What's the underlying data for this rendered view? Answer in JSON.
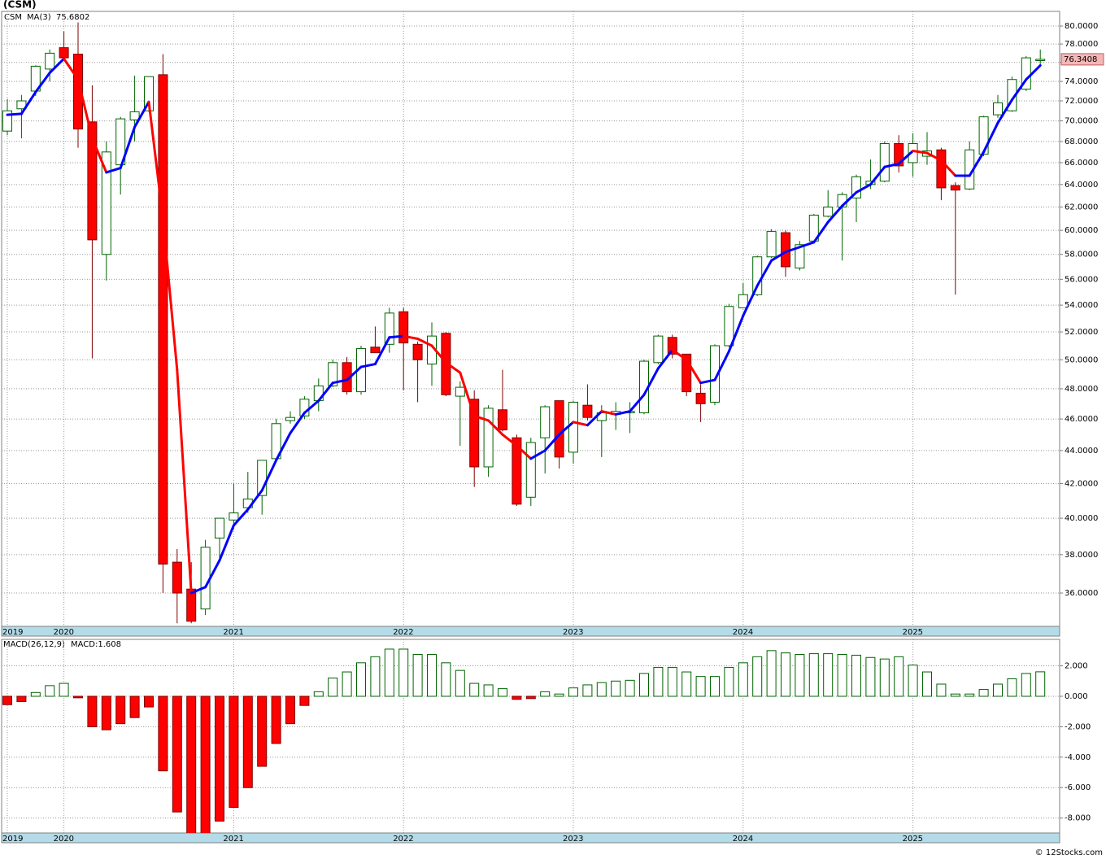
{
  "chart_data": [
    {
      "type": "candlestick",
      "title": "(CSM)",
      "symbol": "CSM",
      "symbol_color": "#006400",
      "categories": [
        "2019",
        null,
        null,
        null,
        "2020",
        null,
        null,
        null,
        null,
        null,
        null,
        null,
        null,
        null,
        null,
        null,
        "2021",
        null,
        null,
        null,
        null,
        null,
        null,
        null,
        null,
        null,
        null,
        null,
        "2022",
        null,
        null,
        null,
        null,
        null,
        null,
        null,
        null,
        null,
        null,
        null,
        "2023",
        null,
        null,
        null,
        null,
        null,
        null,
        null,
        null,
        null,
        null,
        null,
        "2024",
        null,
        null,
        null,
        null,
        null,
        null,
        null,
        null,
        null,
        null,
        null,
        "2025",
        null,
        null,
        null,
        null,
        null,
        null,
        null,
        null,
        null
      ],
      "open": [
        69.0,
        71.2,
        73.0,
        75.3,
        77.6,
        76.9,
        69.9,
        58.0,
        65.8,
        70.1,
        71.0,
        74.7,
        37.6,
        36.2,
        35.2,
        38.9,
        39.9,
        40.6,
        41.3,
        43.5,
        45.9,
        46.2,
        47.2,
        48.2,
        49.8,
        47.8,
        50.9,
        51.1,
        53.5,
        51.1,
        49.7,
        51.9,
        47.5,
        47.3,
        43.0,
        46.6,
        44.8,
        41.2,
        44.8,
        47.2,
        43.9,
        46.9,
        45.9,
        46.3,
        46.4,
        46.4,
        49.8,
        51.6,
        50.4,
        47.7,
        47.1,
        51.0,
        53.8,
        54.8,
        57.8,
        59.8,
        56.9,
        59.1,
        61.2,
        62.0,
        62.8,
        64.0,
        64.3,
        67.8,
        66.0,
        66.6,
        67.2,
        63.9,
        63.6,
        66.8,
        70.6,
        71.0,
        73.2,
        76.2
      ],
      "high": [
        72.2,
        72.6,
        75.7,
        77.4,
        79.4,
        80.4,
        73.6,
        68.0,
        70.4,
        74.6,
        74.5,
        76.9,
        38.3,
        37.6,
        38.8,
        40.0,
        42.0,
        42.7,
        43.4,
        46.0,
        46.5,
        47.5,
        48.7,
        50.0,
        50.2,
        51.0,
        52.4,
        53.8,
        53.8,
        51.3,
        52.7,
        52.0,
        48.5,
        47.9,
        46.9,
        49.3,
        45.0,
        44.8,
        46.9,
        47.2,
        47.2,
        48.3,
        46.9,
        47.1,
        47.1,
        50.0,
        51.8,
        51.8,
        50.4,
        48.3,
        51.1,
        54.1,
        55.7,
        57.9,
        60.1,
        60.0,
        59.1,
        61.4,
        63.5,
        63.3,
        64.9,
        66.3,
        68.0,
        68.6,
        68.8,
        68.9,
        67.4,
        64.2,
        68.0,
        70.5,
        72.6,
        74.5,
        76.7,
        77.4
      ],
      "low": [
        68.6,
        68.3,
        72.5,
        74.0,
        76.2,
        67.4,
        50.1,
        55.9,
        63.1,
        68.0,
        70.9,
        36.0,
        34.5,
        34.5,
        34.9,
        37.6,
        39.4,
        40.3,
        40.2,
        43.4,
        45.7,
        46.0,
        46.5,
        48.1,
        47.6,
        47.6,
        50.5,
        50.5,
        47.9,
        47.1,
        48.2,
        47.5,
        44.3,
        41.8,
        42.4,
        45.2,
        40.7,
        40.7,
        42.6,
        42.9,
        43.2,
        45.9,
        43.6,
        45.3,
        45.1,
        46.3,
        49.7,
        50.1,
        47.5,
        45.8,
        46.9,
        50.9,
        53.8,
        54.7,
        57.7,
        56.2,
        56.7,
        58.9,
        61.1,
        57.5,
        60.7,
        63.6,
        64.2,
        65.1,
        64.7,
        65.8,
        62.6,
        54.8,
        63.5,
        66.6,
        70.3,
        70.9,
        73.0,
        75.8
      ],
      "close": [
        71.0,
        72.0,
        75.6,
        77.0,
        76.5,
        69.2,
        59.2,
        67.0,
        70.2,
        70.9,
        74.5,
        37.5,
        36.0,
        34.6,
        38.4,
        40.0,
        40.3,
        41.1,
        43.4,
        45.7,
        46.1,
        47.3,
        48.2,
        49.8,
        47.8,
        50.8,
        50.5,
        53.4,
        51.2,
        50.0,
        51.7,
        47.6,
        48.1,
        43.0,
        46.7,
        45.3,
        40.8,
        44.5,
        46.8,
        43.6,
        47.1,
        46.1,
        46.4,
        46.5,
        46.5,
        49.9,
        51.7,
        50.4,
        47.8,
        47.0,
        51.0,
        53.9,
        54.8,
        57.8,
        59.9,
        57.0,
        58.8,
        61.3,
        62.0,
        63.1,
        64.7,
        64.3,
        67.8,
        65.7,
        67.8,
        67.1,
        63.7,
        63.5,
        67.2,
        70.4,
        71.8,
        74.2,
        76.5,
        76.3408
      ],
      "up_color": "#006400",
      "down_color": "#ff0000",
      "last_color": "#f4b6b6",
      "log_scale": true,
      "grid": true,
      "ylim": [
        34.35,
        81.67
      ],
      "yticks": [
        {
          "value": 36,
          "label": "36.0000"
        },
        {
          "value": 38,
          "label": "38.0000"
        },
        {
          "value": 40,
          "label": "40.0000"
        },
        {
          "value": 42,
          "label": "42.0000"
        },
        {
          "value": 44,
          "label": "44.0000"
        },
        {
          "value": 46,
          "label": "46.0000"
        },
        {
          "value": 48,
          "label": "48.0000"
        },
        {
          "value": 50,
          "label": "50.0000"
        },
        {
          "value": 52,
          "label": "52.0000"
        },
        {
          "value": 54,
          "label": "54.0000"
        },
        {
          "value": 56,
          "label": "56.0000"
        },
        {
          "value": 58,
          "label": "58.0000"
        },
        {
          "value": 60,
          "label": "60.0000"
        },
        {
          "value": 62,
          "label": "62.0000"
        },
        {
          "value": 64,
          "label": "64.0000"
        },
        {
          "value": 66,
          "label": "66.0000"
        },
        {
          "value": 68,
          "label": "68.0000"
        },
        {
          "value": 70,
          "label": "70.0000"
        },
        {
          "value": 72,
          "label": "72.0000"
        },
        {
          "value": 74,
          "label": "74.0000"
        },
        {
          "value": 76,
          "label": "76.0000"
        },
        {
          "value": 78,
          "label": "78.0000"
        },
        {
          "value": 80,
          "label": "80.0000"
        }
      ],
      "series": [
        {
          "name": "MA(3)",
          "color": "#0000ff",
          "down_color": "#ff0000",
          "values": [
            70.6,
            70.7,
            72.9,
            74.9,
            76.4,
            74.2,
            68.3,
            65.1,
            65.5,
            69.4,
            71.9,
            60.97,
            49.3,
            36.0,
            36.3,
            37.7,
            39.6,
            40.5,
            41.6,
            43.4,
            45.1,
            46.4,
            47.2,
            48.4,
            48.6,
            49.5,
            49.7,
            51.6,
            51.7,
            51.5,
            51.0,
            49.8,
            49.1,
            46.2,
            45.9,
            45.0,
            44.3,
            43.5,
            44.0,
            45.0,
            45.8,
            45.6,
            46.5,
            46.3,
            46.5,
            47.6,
            49.4,
            50.7,
            50.0,
            48.4,
            48.6,
            50.6,
            53.2,
            55.5,
            57.5,
            58.2,
            58.6,
            59.0,
            60.7,
            62.1,
            63.3,
            64.0,
            65.6,
            65.9,
            67.1,
            66.9,
            66.2,
            64.8,
            64.8,
            67.0,
            69.8,
            72.1,
            74.2,
            75.6802
          ]
        }
      ]
    },
    {
      "type": "bar",
      "title": "MACD(26,12,9)",
      "categories": [
        "2019",
        null,
        null,
        null,
        "2020",
        null,
        null,
        null,
        null,
        null,
        null,
        null,
        null,
        null,
        null,
        null,
        "2021",
        null,
        null,
        null,
        null,
        null,
        null,
        null,
        null,
        null,
        null,
        null,
        "2022",
        null,
        null,
        null,
        null,
        null,
        null,
        null,
        null,
        null,
        null,
        null,
        "2023",
        null,
        null,
        null,
        null,
        null,
        null,
        null,
        null,
        null,
        null,
        null,
        "2024",
        null,
        null,
        null,
        null,
        null,
        null,
        null,
        null,
        null,
        null,
        null,
        "2025",
        null,
        null,
        null,
        null,
        null,
        null,
        null,
        null,
        null
      ],
      "up_color": "#006400",
      "down_color": "#ff0000",
      "grid": true,
      "ylim": [
        -8.98,
        3.74
      ],
      "yticks": [
        {
          "value": -8,
          "label": "-8.000"
        },
        {
          "value": -6,
          "label": "-6.000"
        },
        {
          "value": -4,
          "label": "-4.000"
        },
        {
          "value": -2,
          "label": "-2.000"
        },
        {
          "value": 0,
          "label": "0.000"
        },
        {
          "value": 2,
          "label": "2.000"
        }
      ],
      "series": [
        {
          "name": "MACD:",
          "color": "#0000ff",
          "values": [
            -0.55,
            -0.35,
            0.25,
            0.7,
            0.85,
            -0.1,
            -2.0,
            -2.2,
            -1.8,
            -1.4,
            -0.7,
            -4.9,
            -7.6,
            -9.0,
            -9.0,
            -8.2,
            -7.3,
            -6.0,
            -4.6,
            -3.1,
            -1.8,
            -0.6,
            0.3,
            1.2,
            1.6,
            2.2,
            2.6,
            3.1,
            3.1,
            2.75,
            2.75,
            2.2,
            1.7,
            0.85,
            0.75,
            0.5,
            -0.2,
            -0.15,
            0.3,
            0.15,
            0.55,
            0.75,
            0.9,
            1.0,
            1.05,
            1.5,
            1.9,
            1.9,
            1.6,
            1.3,
            1.3,
            1.9,
            2.2,
            2.6,
            3.0,
            2.85,
            2.75,
            2.8,
            2.8,
            2.75,
            2.7,
            2.55,
            2.45,
            2.6,
            2.05,
            1.6,
            0.8,
            0.15,
            0.15,
            0.45,
            0.8,
            1.15,
            1.5,
            1.608
          ]
        }
      ]
    }
  ],
  "footer": "© 12Stocks.com"
}
